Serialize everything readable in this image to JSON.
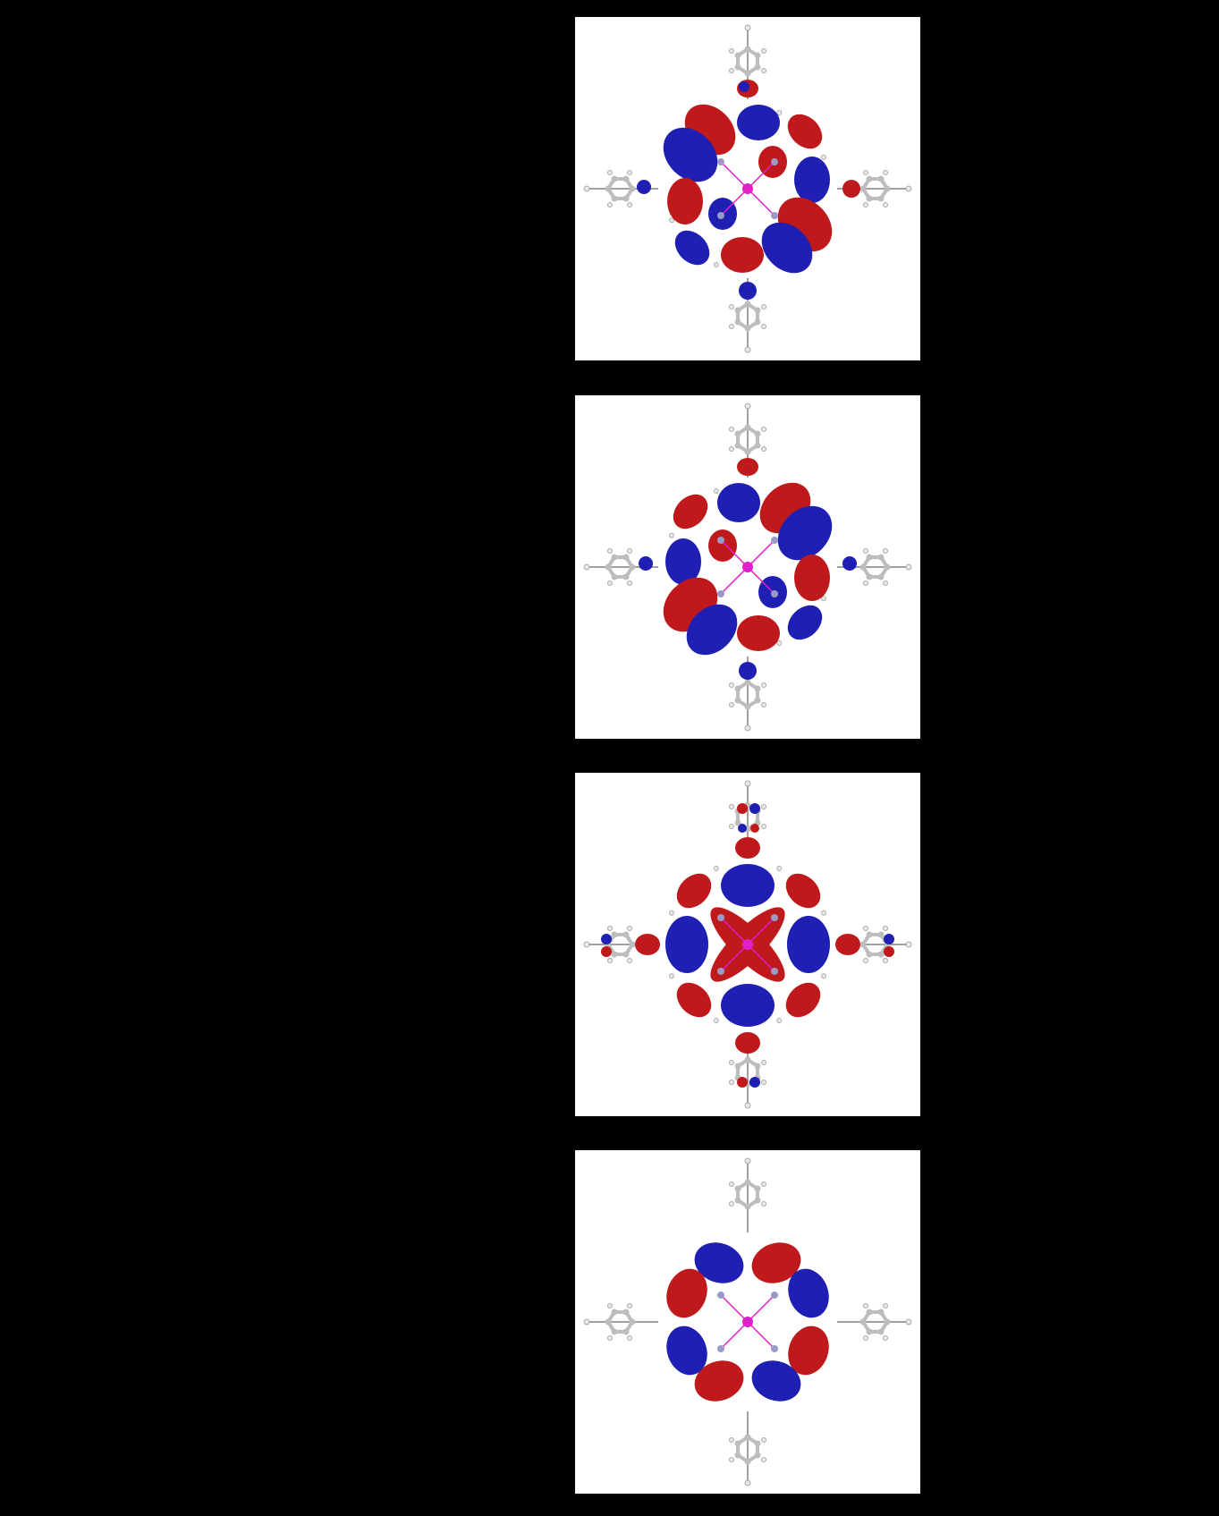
{
  "colors": {
    "lobe_positive": "#c0191b",
    "lobe_negative": "#1f1fb4",
    "carbon": "#bdbdbd",
    "hydrogen": "#e8e8e8",
    "nitrogen": "#9a9ac8",
    "metal_center": "#e020c8",
    "background_panel": "#ffffff",
    "background_page": "#000000"
  },
  "panels": [
    {
      "name": "orbital-panel-1",
      "pattern": "lobes-diagonal-a"
    },
    {
      "name": "orbital-panel-2",
      "pattern": "lobes-diagonal-b"
    },
    {
      "name": "orbital-panel-3",
      "pattern": "lobes-cross"
    },
    {
      "name": "orbital-panel-4",
      "pattern": "lobes-ring"
    }
  ]
}
